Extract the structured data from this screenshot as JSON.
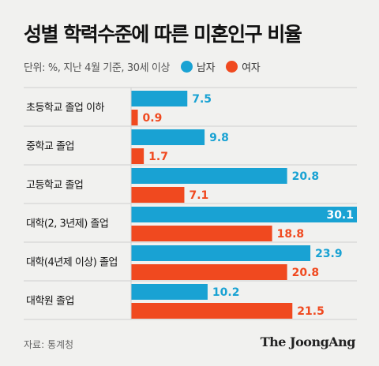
{
  "header": {
    "title": "성별 학력수준에 따른 미혼인구 비율",
    "note": "단위: %, 지난 4월 기준, 30세 이상"
  },
  "legend": [
    {
      "label": "남자",
      "color": "#19a2d3"
    },
    {
      "label": "여자",
      "color": "#f0491f"
    }
  ],
  "chart_data": {
    "type": "bar",
    "orientation": "horizontal",
    "categories": [
      "초등학교 졸업 이하",
      "중학교 졸업",
      "고등학교 졸업",
      "대학(2, 3년제) 졸업",
      "대학(4년제 이상) 졸업",
      "대학원 졸업"
    ],
    "series": [
      {
        "name": "남자",
        "values": [
          7.5,
          9.8,
          20.8,
          30.1,
          23.9,
          10.2
        ],
        "labels": [
          "7.5",
          "9.8",
          "20.8",
          "30.1",
          "23.9",
          "10.2"
        ],
        "color": "#19a2d3"
      },
      {
        "name": "여자",
        "values": [
          0.9,
          1.7,
          7.1,
          18.8,
          20.8,
          21.5
        ],
        "labels": [
          "0.9",
          "1.7",
          "7.1",
          "18.8",
          "20.8",
          "21.5"
        ],
        "color": "#f0491f"
      }
    ],
    "title": "성별 학력수준에 따른 미혼인구 비율",
    "xlim": [
      0,
      30.1
    ],
    "grid": false,
    "legend_position": "top"
  },
  "footer": {
    "source": "자료: 통계청",
    "brand": "The JoongAng"
  }
}
